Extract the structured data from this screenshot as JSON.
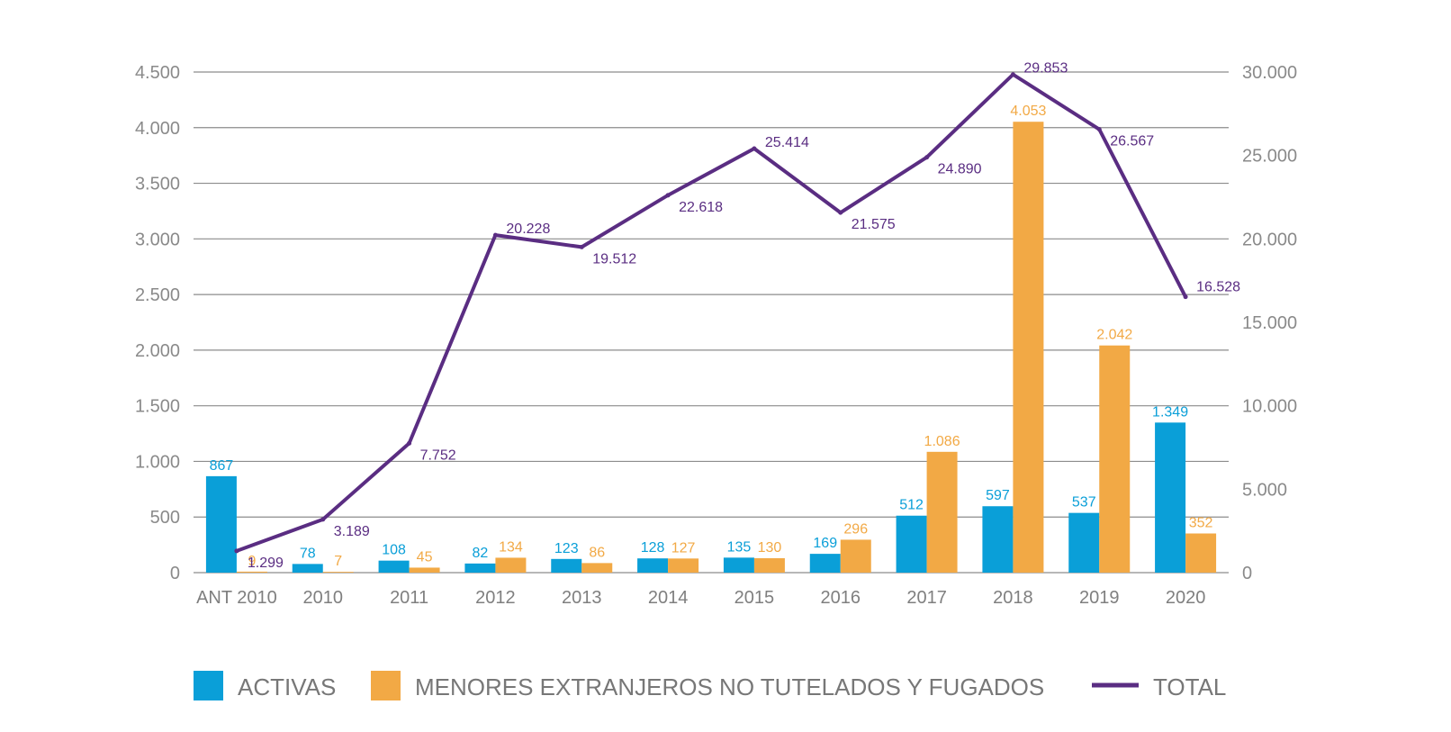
{
  "chart_data": {
    "type": "bar",
    "categories": [
      "ANT 2010",
      "2010",
      "2011",
      "2012",
      "2013",
      "2014",
      "2015",
      "2016",
      "2017",
      "2018",
      "2019",
      "2020"
    ],
    "series": [
      {
        "name": "ACTIVAS",
        "kind": "bar",
        "axis": "left",
        "color": "#0a9fd8",
        "values": [
          867,
          78,
          108,
          82,
          123,
          128,
          135,
          169,
          512,
          597,
          537,
          1349
        ],
        "labels": [
          "867",
          "78",
          "108",
          "82",
          "123",
          "128",
          "135",
          "169",
          "512",
          "597",
          "537",
          "1.349"
        ]
      },
      {
        "name": "MENORES EXTRANJEROS NO TUTELADOS Y FUGADOS",
        "kind": "bar",
        "axis": "left",
        "color": "#f2a945",
        "values": [
          9,
          7,
          45,
          134,
          86,
          127,
          130,
          296,
          1086,
          4053,
          2042,
          352
        ],
        "labels": [
          "9",
          "7",
          "45",
          "134",
          "86",
          "127",
          "130",
          "296",
          "1.086",
          "4.053",
          "2.042",
          "352"
        ]
      },
      {
        "name": "TOTAL",
        "kind": "line",
        "axis": "right",
        "color": "#5a2d82",
        "values": [
          1299,
          3189,
          7752,
          20228,
          19512,
          22618,
          25414,
          21575,
          24890,
          29853,
          26567,
          16528
        ],
        "labels": [
          "1.299",
          "3.189",
          "7.752",
          "20.228",
          "19.512",
          "22.618",
          "25.414",
          "21.575",
          "24.890",
          "29.853",
          "26.567",
          "16.528"
        ]
      }
    ],
    "left_axis": {
      "ylim": [
        0,
        4500
      ],
      "ticks": [
        0,
        500,
        1000,
        1500,
        2000,
        2500,
        3000,
        3500,
        4000,
        4500
      ],
      "tick_labels": [
        "0",
        "500",
        "1.000",
        "1.500",
        "2.000",
        "2.500",
        "3.000",
        "3.500",
        "4.000",
        "4.500"
      ]
    },
    "right_axis": {
      "ylim": [
        0,
        30000
      ],
      "ticks": [
        0,
        5000,
        10000,
        15000,
        20000,
        25000,
        30000
      ],
      "tick_labels": [
        "0",
        "5.000",
        "10.000",
        "15.000",
        "20.000",
        "25.000",
        "30.000"
      ]
    },
    "grid": true,
    "legend": "bottom"
  }
}
